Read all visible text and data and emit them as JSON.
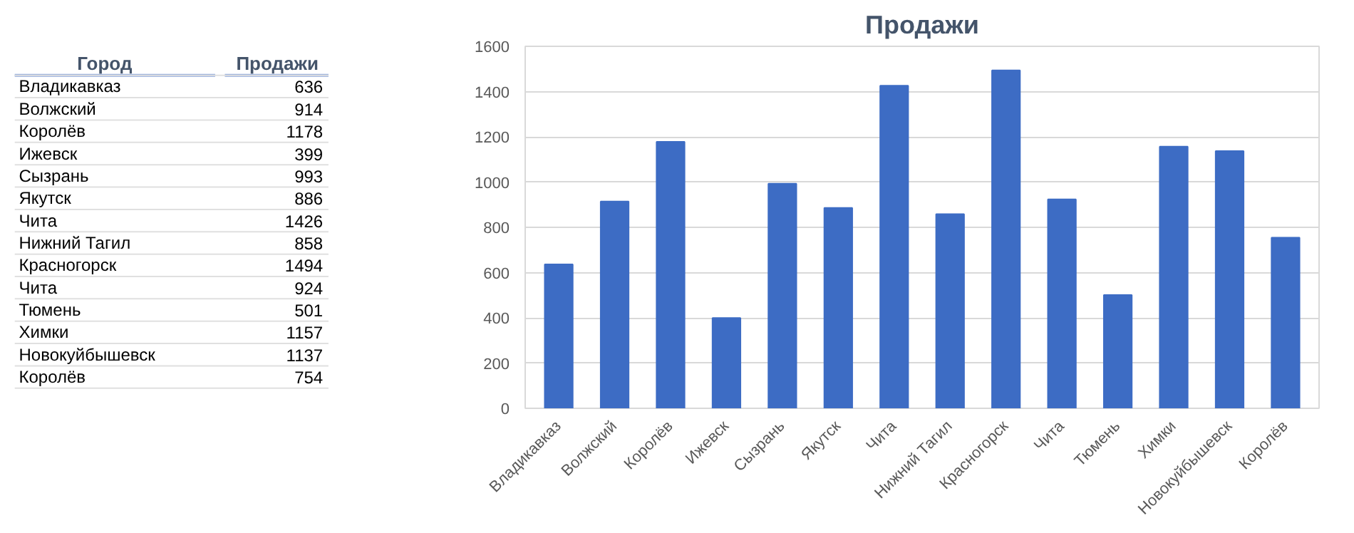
{
  "chart_data": [
    {
      "type": "other",
      "annotations": [
        "Город",
        "Продажи",
        "Владикавказ",
        "636",
        "Волжский",
        "914",
        "Королёв",
        "1178",
        "Ижевск",
        "399",
        "Сызрань",
        "993",
        "Якутск",
        "886",
        "Чита",
        "1426",
        "Нижний Тагил",
        "858",
        "Красногорск",
        "1494",
        "Чита",
        "924",
        "Тюмень",
        "501",
        "Химки",
        "1157",
        "Новокуйбышевск",
        "1137",
        "Королёв",
        "754"
      ]
    },
    {
      "type": "bar",
      "title": "Продажи",
      "categories": [
        "Владикавказ",
        "Волжский",
        "Королёв",
        "Ижевск",
        "Сызрань",
        "Якутск",
        "Чита",
        "Нижний Тагил",
        "Красногорск",
        "Чита",
        "Тюмень",
        "Химки",
        "Новокуйбышевск",
        "Королёв"
      ],
      "values": [
        636,
        914,
        1178,
        399,
        993,
        886,
        1426,
        858,
        1494,
        924,
        501,
        1157,
        1137,
        754
      ],
      "color": "#3d6cc4",
      "ylim": [
        0,
        1600
      ],
      "yticks": [
        0,
        200,
        400,
        600,
        800,
        1000,
        1200,
        1400,
        1600
      ],
      "grid": "y"
    }
  ]
}
